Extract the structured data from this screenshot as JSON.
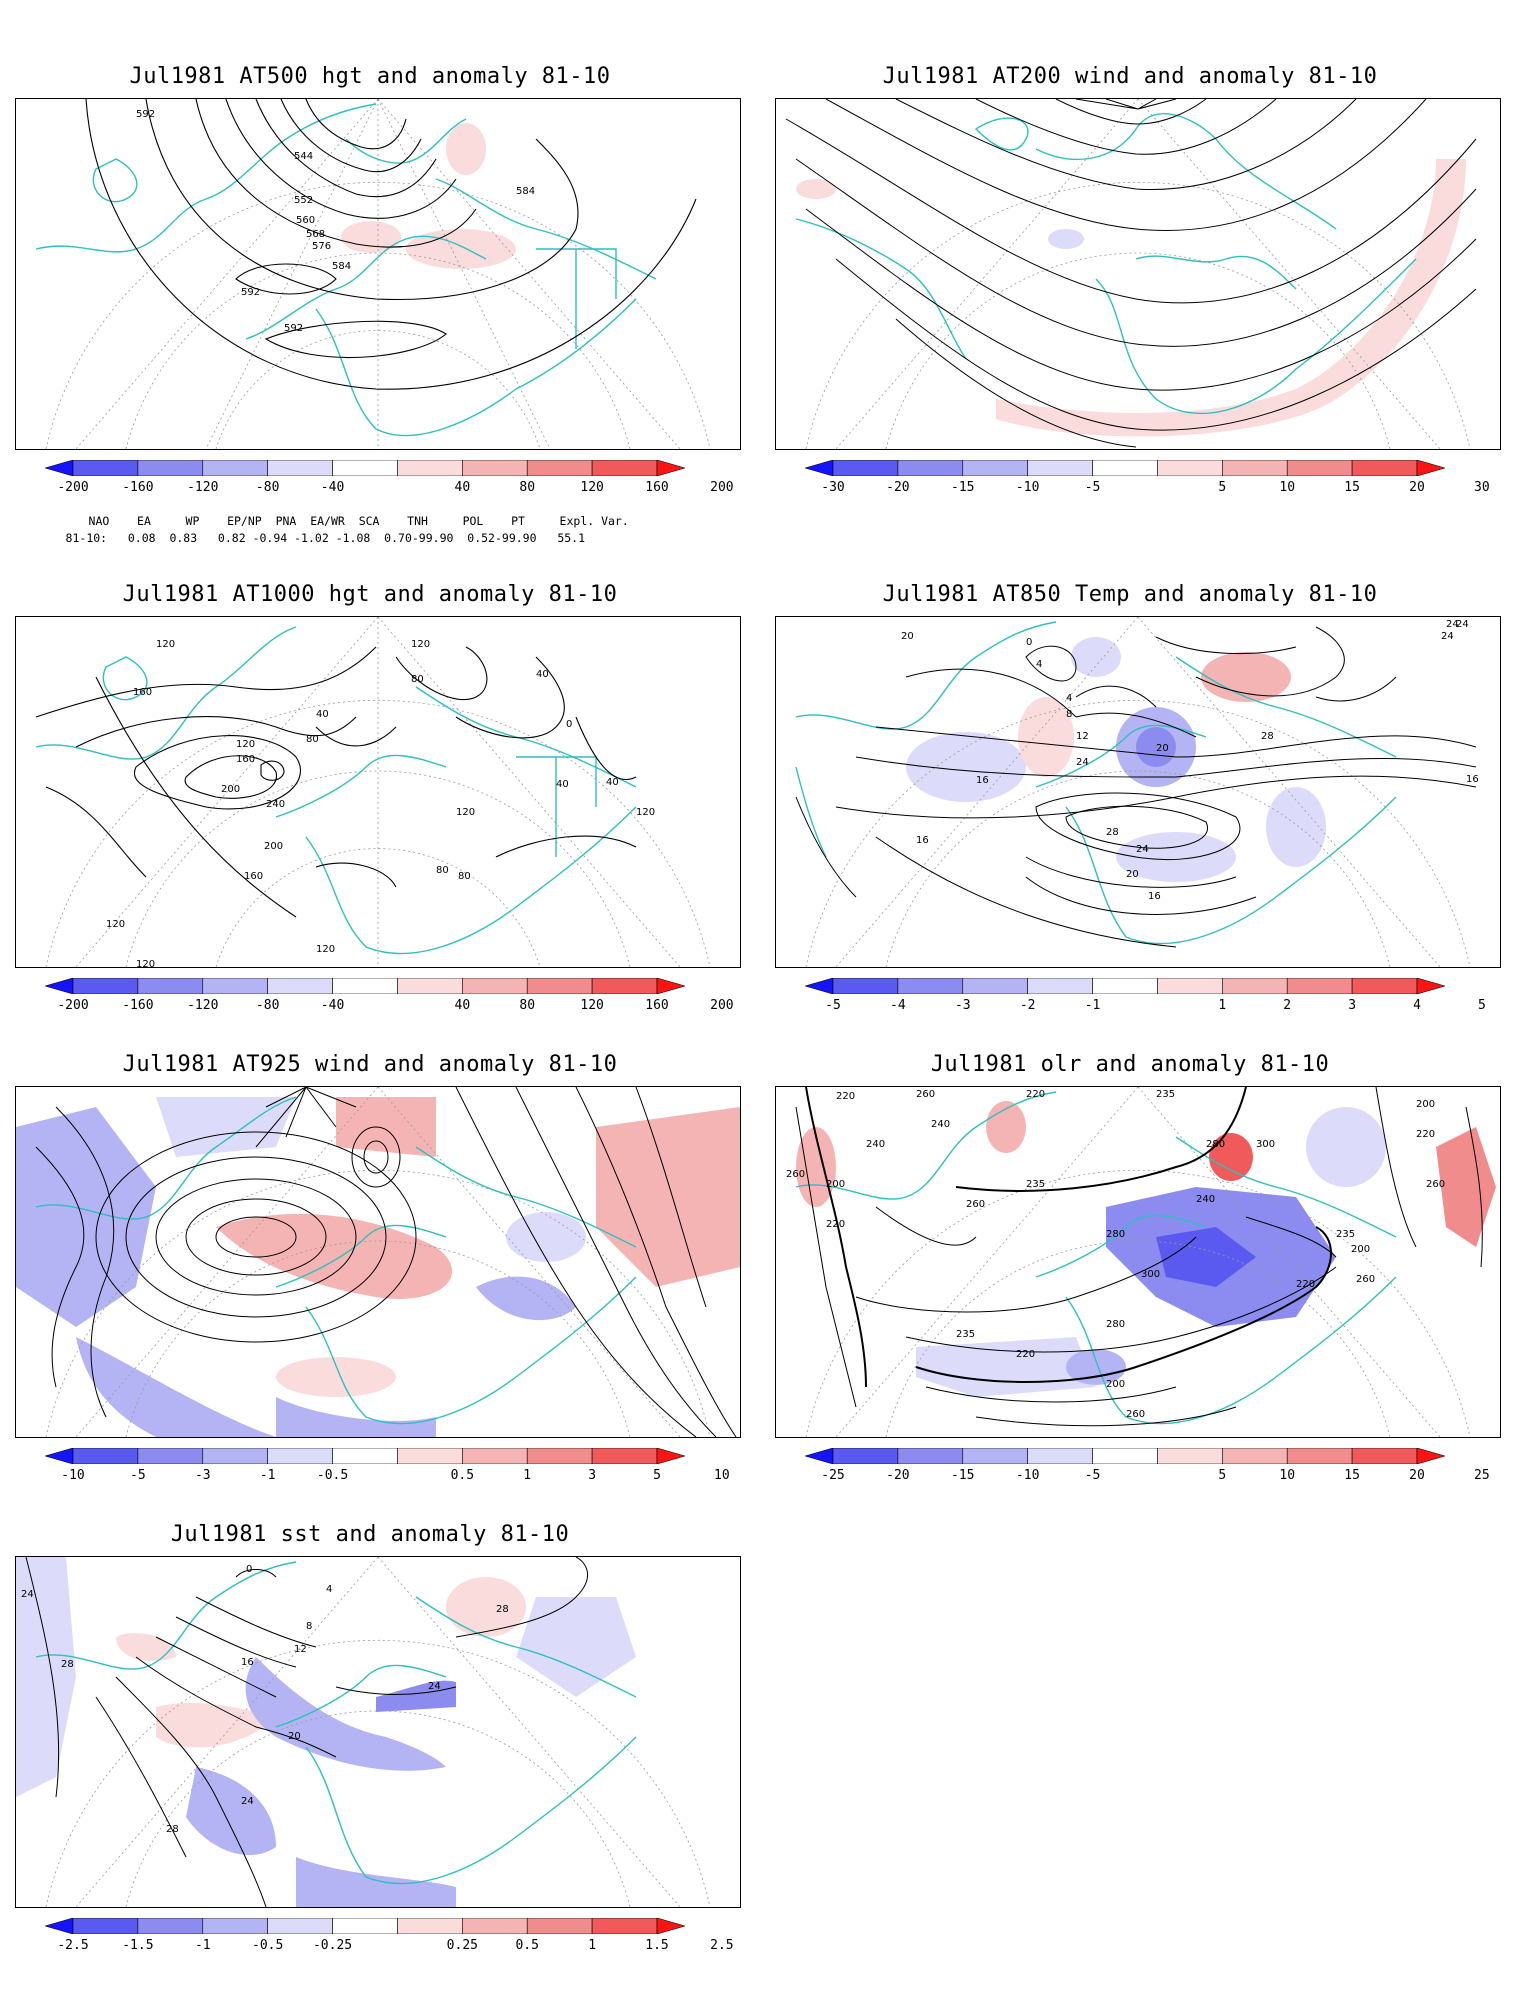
{
  "panels": [
    {
      "title": "Jul1981 AT500 hgt and anomaly 81-10",
      "contour_labels": [
        "592",
        "544",
        "552",
        "560",
        "568",
        "576",
        "584",
        "592",
        "592",
        "584"
      ],
      "colorbar": [
        "-200",
        "-160",
        "-120",
        "-80",
        "-40",
        "40",
        "80",
        "120",
        "160",
        "200"
      ]
    },
    {
      "title": "Jul1981 AT200 wind and anomaly 81-10",
      "contour_labels": [],
      "colorbar": [
        "-30",
        "-20",
        "-15",
        "-10",
        "-5",
        "5",
        "10",
        "15",
        "20",
        "30"
      ]
    },
    {
      "title": "Jul1981 AT1000 hgt and anomaly 81-10",
      "contour_labels": [
        "120",
        "160",
        "120",
        "160",
        "200",
        "240",
        "200",
        "160",
        "120",
        "40",
        "80",
        "120",
        "80",
        "40",
        "0",
        "40",
        "40",
        "120",
        "120",
        "80",
        "80",
        "120",
        "120"
      ],
      "colorbar": [
        "-200",
        "-160",
        "-120",
        "-80",
        "-40",
        "40",
        "80",
        "120",
        "160",
        "200"
      ]
    },
    {
      "title": "Jul1981 AT850 Temp and anomaly 81-10",
      "contour_labels": [
        "20",
        "0",
        "4",
        "4",
        "8",
        "12",
        "20",
        "24",
        "28",
        "24",
        "16",
        "16",
        "16",
        "28",
        "24",
        "20",
        "16",
        "24",
        "24"
      ],
      "colorbar": [
        "-5",
        "-4",
        "-3",
        "-2",
        "-1",
        "1",
        "2",
        "3",
        "4",
        "5"
      ]
    },
    {
      "title": "Jul1981 AT925 wind and anomaly 81-10",
      "contour_labels": [],
      "colorbar": [
        "-10",
        "-5",
        "-3",
        "-1",
        "-0.5",
        "0.5",
        "1",
        "3",
        "5",
        "10"
      ]
    },
    {
      "title": "Jul1981 olr and anomaly 81-10",
      "contour_labels": [
        "260",
        "220",
        "240",
        "220",
        "240",
        "235",
        "260",
        "200",
        "220",
        "260",
        "235",
        "280",
        "300",
        "280",
        "300",
        "240",
        "220",
        "200",
        "260",
        "235",
        "220",
        "200",
        "260",
        "235",
        "220",
        "200",
        "280",
        "260"
      ],
      "colorbar": [
        "-25",
        "-20",
        "-15",
        "-10",
        "-5",
        "5",
        "10",
        "15",
        "20",
        "25"
      ]
    },
    {
      "title": "Jul1981 sst and anomaly 81-10",
      "contour_labels": [
        "24",
        "28",
        "0",
        "4",
        "8",
        "12",
        "16",
        "20",
        "24",
        "28",
        "24",
        "28"
      ],
      "colorbar": [
        "-2.5",
        "-1.5",
        "-1",
        "-0.5",
        "-0.25",
        "0.25",
        "0.5",
        "1",
        "1.5",
        "2.5"
      ]
    }
  ],
  "teleconnections": {
    "headers": [
      "NAO",
      "EA",
      "WP",
      "EP/NP",
      "PNA",
      "EA/WR",
      "SCA",
      "TNH",
      "POL",
      "PT",
      "Expl. Var."
    ],
    "row_label": "81-10:",
    "values": [
      "0.08",
      "0.83",
      "0.82",
      "-0.94",
      "-1.02",
      "-1.08",
      "0.70",
      "-99.90",
      "0.52",
      "-99.90",
      "55.1"
    ]
  },
  "colors": {
    "coast": "#2ebfbf",
    "contour": "#000000",
    "scale": [
      "#1414ff",
      "#5a5af0",
      "#8c8cf0",
      "#b4b4f5",
      "#dcdcfa",
      "#ffffff",
      "#fadcdc",
      "#f5b4b4",
      "#f08c8c",
      "#f05a5a",
      "#ff1414"
    ]
  }
}
